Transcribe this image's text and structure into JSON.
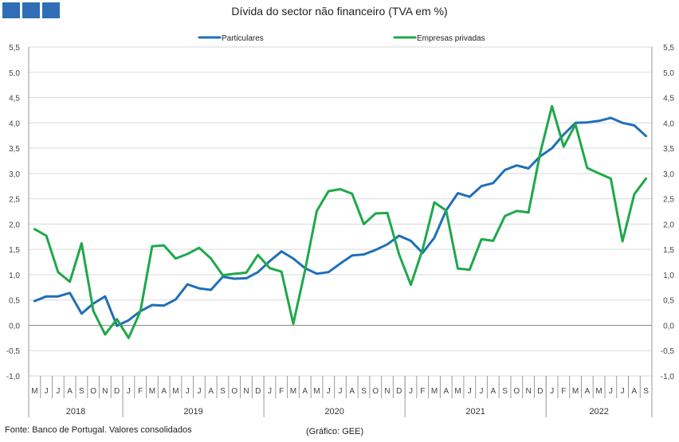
{
  "header": {
    "logo_icon": "bar-tiles-logo-icon",
    "title": "Dívida do sector não financeiro (TVA em %)"
  },
  "footer": {
    "source": "Fonte: Banco de Portugal. Valores consolidados",
    "credit": "(Gráfico: GEE)"
  },
  "chart_data": {
    "type": "line",
    "title": "Dívida do sector não financeiro (TVA em %)",
    "ylim": [
      -1.0,
      5.5
    ],
    "yticks": [
      "5,5",
      "5,0",
      "4,5",
      "4,0",
      "3,5",
      "3,0",
      "2,5",
      "2,0",
      "1,5",
      "1,0",
      "0,5",
      "0,0",
      "-0,5",
      "-1,0"
    ],
    "grid": true,
    "legend_position": "top-center",
    "month_labels": [
      "M",
      "J",
      "J",
      "A",
      "S",
      "O",
      "N",
      "D",
      "J",
      "F",
      "M",
      "A",
      "M",
      "J",
      "J",
      "A",
      "S",
      "O",
      "N",
      "D",
      "J",
      "F",
      "M",
      "A",
      "M",
      "J",
      "J",
      "A",
      "S",
      "O",
      "N",
      "D",
      "J",
      "F",
      "M",
      "A",
      "M",
      "J",
      "J",
      "A",
      "S",
      "O",
      "N",
      "D",
      "J",
      "F",
      "M",
      "A",
      "M",
      "J",
      "J",
      "A",
      "S"
    ],
    "years": [
      {
        "label": "2018",
        "start": 0,
        "end": 7
      },
      {
        "label": "2019",
        "start": 8,
        "end": 19
      },
      {
        "label": "2020",
        "start": 20,
        "end": 31
      },
      {
        "label": "2021",
        "start": 32,
        "end": 43
      },
      {
        "label": "2022",
        "start": 44,
        "end": 52
      }
    ],
    "series": [
      {
        "name": "Particulares",
        "color": "#1f6fb8",
        "values": [
          0.48,
          0.57,
          0.57,
          0.64,
          0.23,
          0.43,
          0.57,
          -0.01,
          0.1,
          0.28,
          0.4,
          0.39,
          0.51,
          0.81,
          0.73,
          0.7,
          0.96,
          0.92,
          0.93,
          1.05,
          1.27,
          1.46,
          1.32,
          1.13,
          1.02,
          1.05,
          1.22,
          1.38,
          1.4,
          1.49,
          1.6,
          1.77,
          1.67,
          1.43,
          1.73,
          2.27,
          2.61,
          2.54,
          2.75,
          2.81,
          3.07,
          3.16,
          3.1,
          3.34,
          3.5,
          3.77,
          4.0,
          4.01,
          4.04,
          4.1,
          4.0,
          3.95,
          3.74
        ]
      },
      {
        "name": "Empresas privadas",
        "color": "#1ea84a",
        "values": [
          1.9,
          1.77,
          1.05,
          0.86,
          1.62,
          0.28,
          -0.18,
          0.12,
          -0.25,
          0.28,
          1.56,
          1.58,
          1.32,
          1.41,
          1.53,
          1.32,
          0.99,
          1.02,
          1.04,
          1.39,
          1.13,
          1.06,
          0.03,
          1.08,
          2.26,
          2.65,
          2.69,
          2.6,
          2.0,
          2.21,
          2.22,
          1.4,
          0.8,
          1.5,
          2.43,
          2.27,
          1.12,
          1.1,
          1.7,
          1.67,
          2.16,
          2.26,
          2.23,
          3.4,
          4.33,
          3.53,
          3.97,
          3.11,
          3.0,
          2.9,
          1.66,
          2.59,
          2.9
        ]
      }
    ]
  }
}
